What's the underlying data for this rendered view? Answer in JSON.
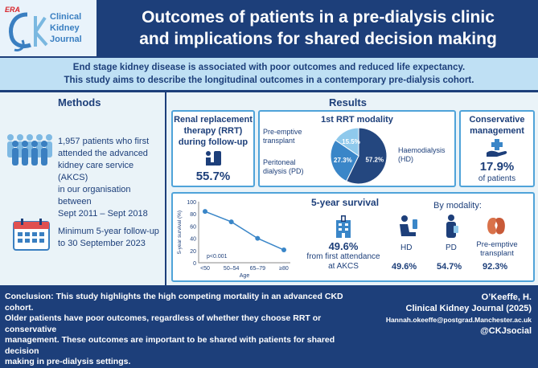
{
  "header": {
    "logo_era": "ERA",
    "logo_line1": "Clinical",
    "logo_line2": "Kidney",
    "logo_line3": "Journal",
    "title_line1": "Outcomes of patients in a pre-dialysis clinic",
    "title_line2": "and implications for shared decision making"
  },
  "intro": {
    "line1": "End stage kidney disease is associated with poor outcomes and reduced life expectancy.",
    "line2": "This study aims to describe the longitudinal outcomes in a contemporary pre-dialysis cohort."
  },
  "methods": {
    "title": "Methods",
    "cohort_line1": "1,957 patients who first",
    "cohort_line2": "attended the advanced",
    "cohort_line3": "kidney care service (AKCS)",
    "cohort_line4": "in our organisation between",
    "cohort_line5": "Sept 2011 – Sept 2018",
    "followup_line1": "Minimum 5-year follow-up",
    "followup_line2": "to 30 September 2023"
  },
  "results": {
    "title": "Results",
    "rrt": {
      "title_line1": "Renal replacement",
      "title_line2": "therapy (RRT)",
      "title_line3": "during follow-up",
      "value": "55.7%"
    },
    "modality": {
      "title": "1st RRT modality",
      "slices": [
        {
          "label_line1": "Haemodialysis",
          "label_line2": "(HD)",
          "value": "57.2%",
          "pct": 57.2,
          "color": "#24477f"
        },
        {
          "label_line1": "Peritoneal",
          "label_line2": "dialysis (PD)",
          "value": "27.3%",
          "pct": 27.3,
          "color": "#3a86c8"
        },
        {
          "label_line1": "Pre-emptive",
          "label_line2": "transplant",
          "value": "15.5%",
          "pct": 15.5,
          "color": "#8fc9ec"
        }
      ]
    },
    "conservative": {
      "title_line1": "Conservative",
      "title_line2": "management",
      "value": "17.9%",
      "sub": "of patients"
    },
    "survival": {
      "title": "5-year survival",
      "value": "49.6%",
      "sub_line1": "from first attendance",
      "sub_line2": "at AKCS",
      "by_modality": "By modality:",
      "hd_label": "HD",
      "hd_value": "49.6%",
      "pd_label": "PD",
      "pd_value": "54.7%",
      "tx_label_line1": "Pre-emptive",
      "tx_label_line2": "transplant",
      "tx_value": "92.3%"
    }
  },
  "chart_data": {
    "type": "line",
    "categories": [
      "<50",
      "50–54",
      "65–79",
      "≥80"
    ],
    "values": [
      84,
      67,
      40,
      21
    ],
    "ylim": [
      0,
      100
    ],
    "yticks": [
      "0",
      "20",
      "40",
      "60",
      "80",
      "100"
    ],
    "xlabel": "Age",
    "ylabel": "5-year survival (%)",
    "annotation": "p<0.001"
  },
  "footer": {
    "conclusion_line1": "Conclusion: This study highlights the high competing mortality in an advanced CKD cohort.",
    "conclusion_line2": "Older patients have poor outcomes, regardless of whether they choose RRT or conservative",
    "conclusion_line3": "management. These outcomes are important to be shared with patients for shared decision",
    "conclusion_line4": "making in pre-dialysis settings.",
    "author": "O’Keeffe, H.",
    "journal": "Clinical Kidney Journal (2025)",
    "email": "Hannah.okeeffe@postgrad.Manchester.ac.uk",
    "social": "@CKJsocial"
  },
  "colors": {
    "navy": "#1d3f7a",
    "light_blue": "#bfe0f4",
    "accent": "#4fa3d9",
    "panel": "#eaf3f8"
  }
}
